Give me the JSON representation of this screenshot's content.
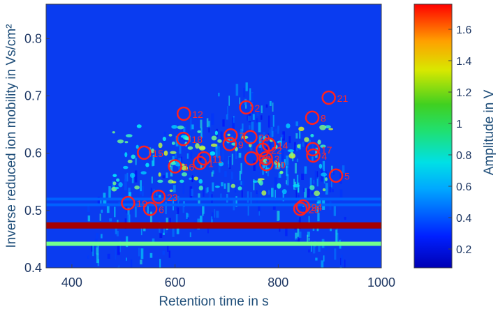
{
  "chart_data": {
    "type": "heatmap",
    "title": "",
    "xlabel": "Retention time in s",
    "ylabel": "Inverse reduced ion mobility in Vs/cm²",
    "xlim": [
      350,
      1000
    ],
    "ylim": [
      0.4,
      0.86
    ],
    "x_ticks": [
      "400",
      "600",
      "800",
      "1000"
    ],
    "y_ticks": [
      "0.4",
      "0.5",
      "0.6",
      "0.7",
      "0.8"
    ],
    "colorbar": {
      "label": "Amplitude in V",
      "range": [
        0.08,
        1.76
      ],
      "ticks": [
        "0.2",
        "0.4",
        "0.6",
        "0.8",
        "1",
        "1.2",
        "1.4",
        "1.6"
      ],
      "colormap": "jet"
    },
    "bands": [
      {
        "y": 0.474,
        "x_start": 350,
        "x_end": 1000,
        "amplitude": 1.7
      },
      {
        "y": 0.442,
        "x_start": 350,
        "x_end": 1000,
        "amplitude": 0.9
      },
      {
        "y": 0.51,
        "x_start": 350,
        "x_end": 1000,
        "amplitude": 0.45
      },
      {
        "y": 0.52,
        "x_start": 350,
        "x_end": 1000,
        "amplitude": 0.45
      }
    ],
    "peaks": [
      {
        "id": "2",
        "x": 738,
        "y": 0.68
      },
      {
        "id": "3",
        "x": 776,
        "y": 0.591
      },
      {
        "id": "4",
        "x": 868,
        "y": 0.596
      },
      {
        "id": "5",
        "x": 912,
        "y": 0.561
      },
      {
        "id": "6",
        "x": 552,
        "y": 0.503
      },
      {
        "id": "7",
        "x": 708,
        "y": 0.631
      },
      {
        "id": "8",
        "x": 866,
        "y": 0.662
      },
      {
        "id": "9",
        "x": 706,
        "y": 0.616
      },
      {
        "id": "10",
        "x": 777,
        "y": 0.581
      },
      {
        "id": "11",
        "x": 656,
        "y": 0.591
      },
      {
        "id": "12",
        "x": 617,
        "y": 0.669
      },
      {
        "id": "13",
        "x": 748,
        "y": 0.591
      },
      {
        "id": "14",
        "x": 782,
        "y": 0.615
      },
      {
        "id": "15",
        "x": 540,
        "y": 0.601
      },
      {
        "id": "16",
        "x": 600,
        "y": 0.577
      },
      {
        "id": "17",
        "x": 867,
        "y": 0.607
      },
      {
        "id": "18",
        "x": 616,
        "y": 0.625
      },
      {
        "id": "19",
        "x": 509,
        "y": 0.513
      },
      {
        "id": "20",
        "x": 746,
        "y": 0.628
      },
      {
        "id": "21",
        "x": 898,
        "y": 0.697
      },
      {
        "id": "22",
        "x": 770,
        "y": 0.606
      },
      {
        "id": "23",
        "x": 568,
        "y": 0.524
      },
      {
        "id": "24",
        "x": 848,
        "y": 0.507
      },
      {
        "id": "25",
        "x": 843,
        "y": 0.503
      },
      {
        "id": "1",
        "x": 648,
        "y": 0.583
      }
    ]
  }
}
